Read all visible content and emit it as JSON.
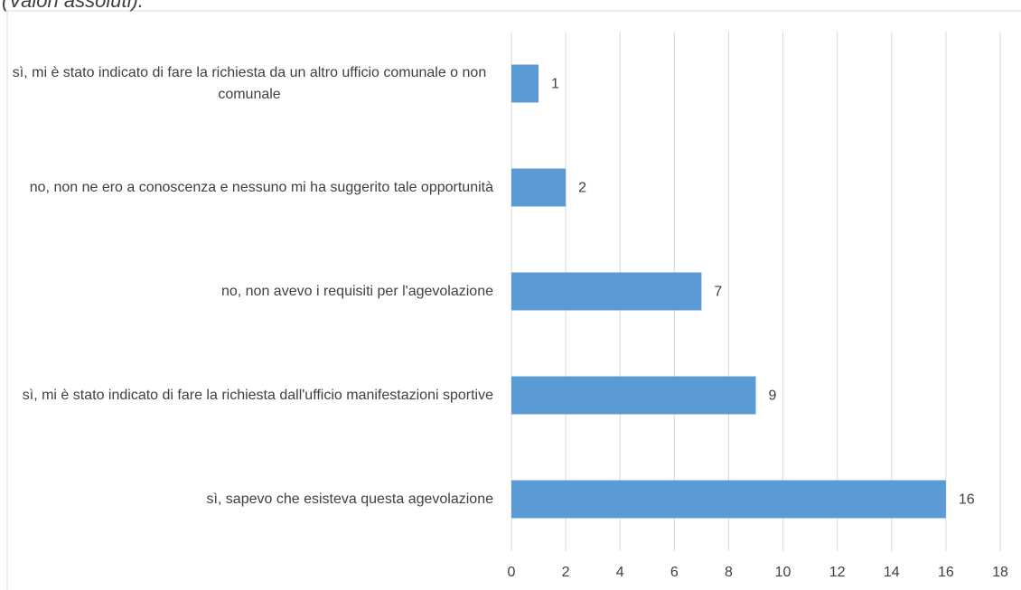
{
  "chart_data": {
    "type": "hbar",
    "title": "(Valori assoluti).",
    "categories": [
      "sì, mi è stato indicato di fare la richiesta da un altro ufficio comunale o non comunale",
      "no, non ne ero a conoscenza e nessuno mi ha suggerito tale opportunità",
      "no, non avevo i requisiti per l'agevolazione",
      "sì, mi è stato indicato di fare la richiesta dall'ufficio manifestazioni sportive",
      "sì, sapevo che esisteva questa agevolazione"
    ],
    "values": [
      1,
      2,
      7,
      9,
      16
    ],
    "color": "#5b9bd5",
    "xlim": [
      0,
      18
    ],
    "xticks": [
      0,
      2,
      4,
      6,
      8,
      10,
      12,
      14,
      16,
      18
    ],
    "grid": true
  }
}
